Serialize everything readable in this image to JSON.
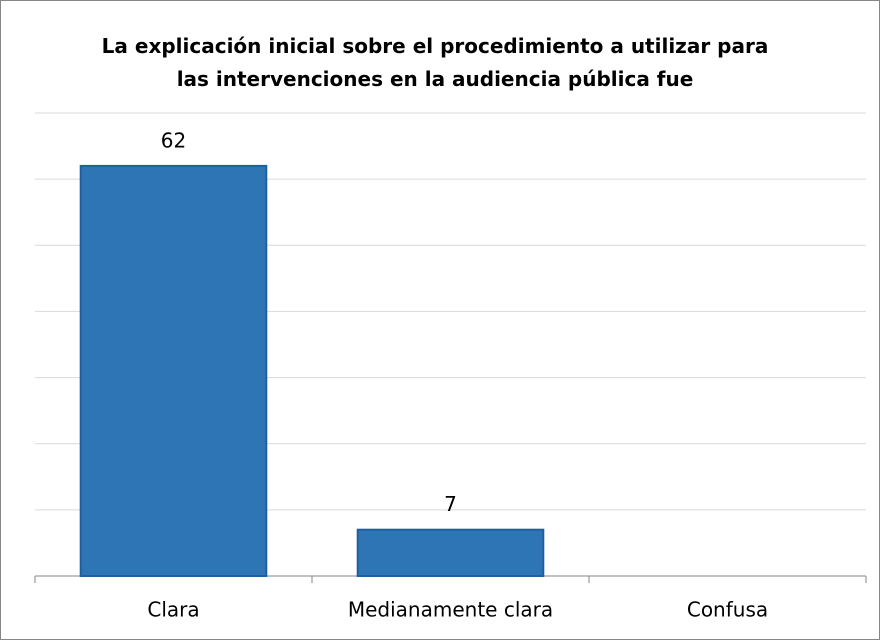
{
  "chart_data": {
    "type": "bar",
    "title": "La explicación inicial sobre el procedimiento a utilizar para las intervenciones en la audiencia pública fue",
    "categories": [
      "Clara",
      "Medianamente clara",
      "Confusa"
    ],
    "values": [
      62,
      7,
      0
    ],
    "value_labels": [
      "62",
      "7",
      null
    ],
    "color": "#2e75b6",
    "ylim": [
      0,
      70
    ],
    "yticks": [
      0,
      10,
      20,
      30,
      40,
      50,
      60,
      70
    ],
    "grid": true
  }
}
